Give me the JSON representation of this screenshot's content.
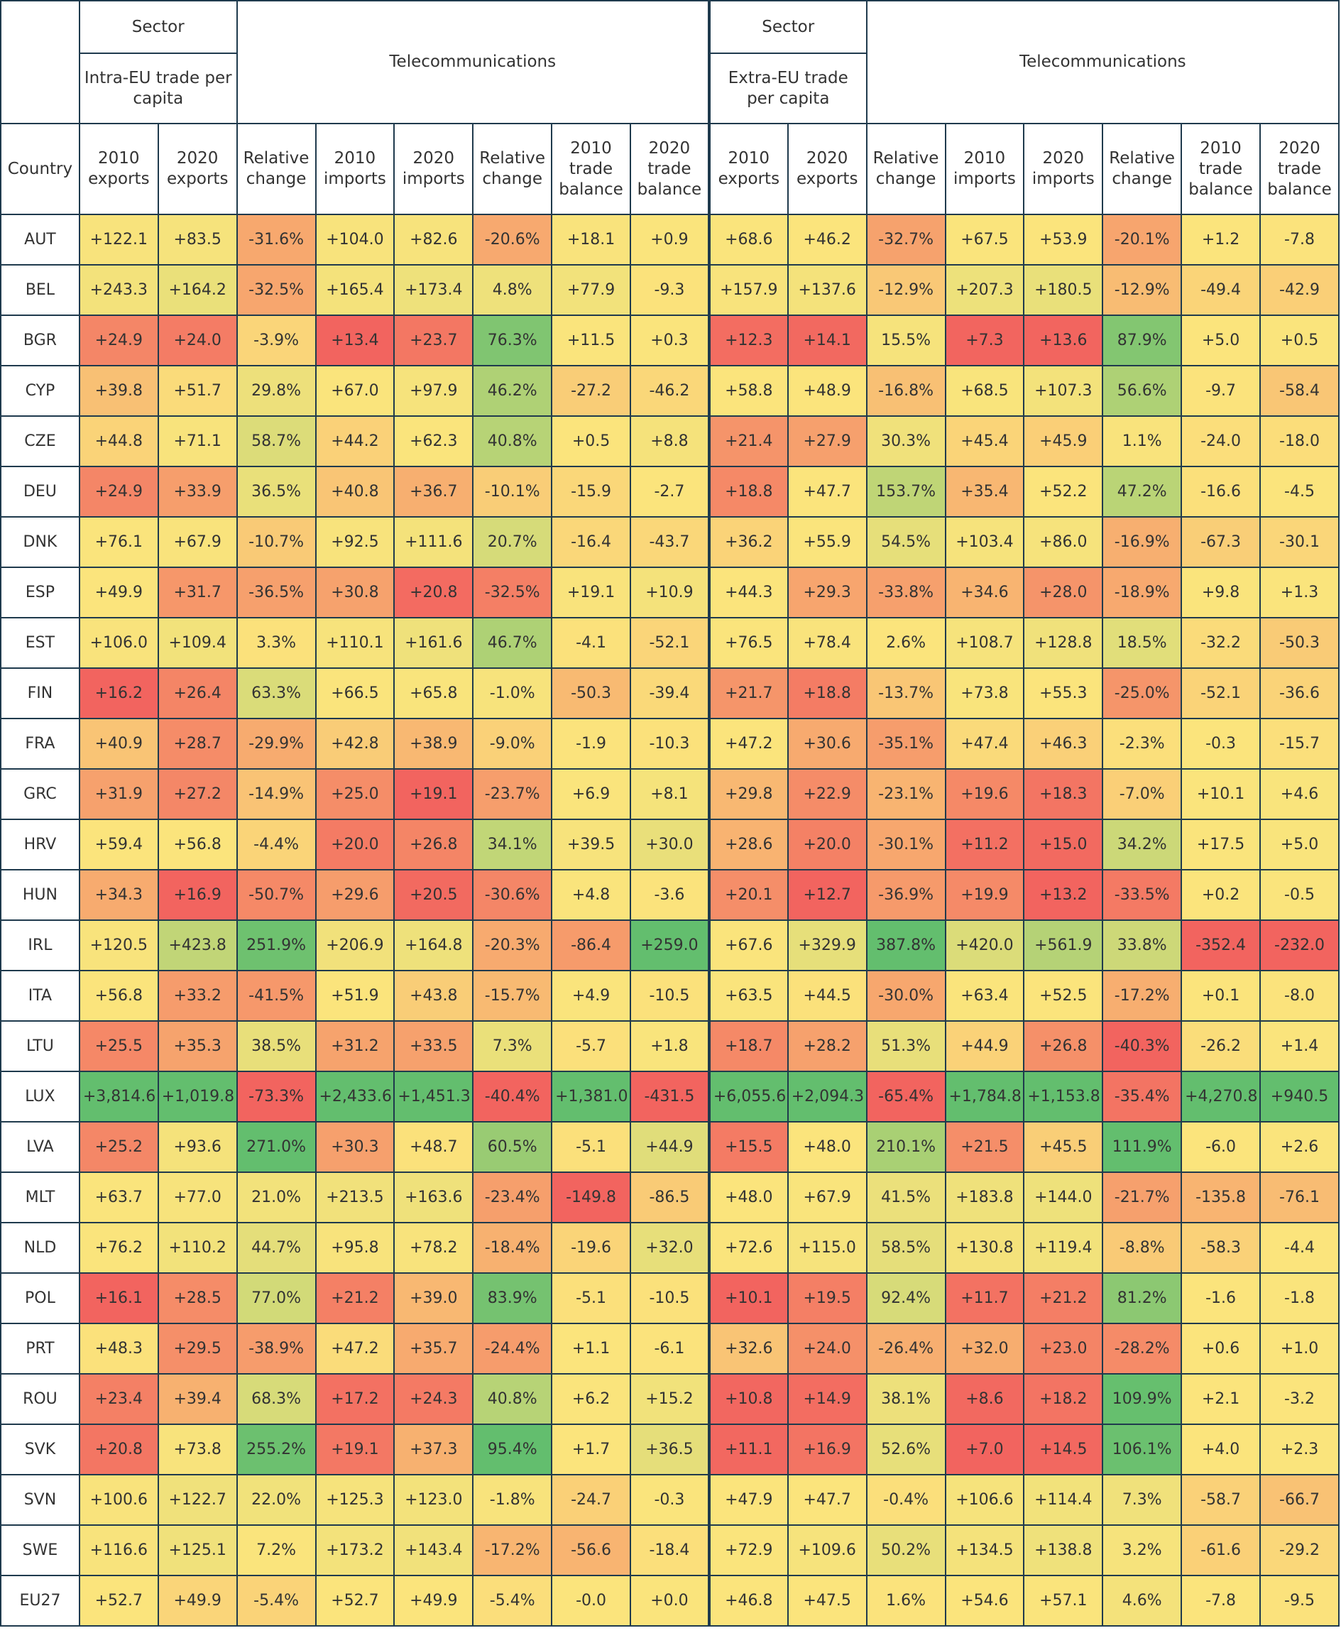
{
  "header": {
    "groups": [
      {
        "sector": "Sector",
        "trade": "Intra-EU trade per capita",
        "label": "Telecommunications"
      },
      {
        "sector": "Sector",
        "trade": "Extra-EU trade per capita",
        "label": "Telecommunications"
      }
    ],
    "columns": [
      "Country",
      "2010 exports",
      "2020 exports",
      "Relative change",
      "2010 imports",
      "2020 imports",
      "Relative change",
      "2010 trade balance",
      "2020 trade balance",
      "2010 exports",
      "2020 exports",
      "Relative change",
      "2010 imports",
      "2020 imports",
      "Relative change",
      "2010 trade balance",
      "2020 trade balance"
    ]
  },
  "heatmap": {
    "low": "#f2645f",
    "mid": "#fbe47c",
    "high": "#63be6e"
  },
  "table": {
    "rows": [
      [
        "AUT",
        "+122.1",
        "+83.5",
        "-31.6%",
        "+104.0",
        "+82.6",
        "-20.6%",
        "+18.1",
        "+0.9",
        "+68.6",
        "+46.2",
        "-32.7%",
        "+67.5",
        "+53.9",
        "-20.1%",
        "+1.2",
        "-7.8"
      ],
      [
        "BEL",
        "+243.3",
        "+164.2",
        "-32.5%",
        "+165.4",
        "+173.4",
        "4.8%",
        "+77.9",
        "-9.3",
        "+157.9",
        "+137.6",
        "-12.9%",
        "+207.3",
        "+180.5",
        "-12.9%",
        "-49.4",
        "-42.9"
      ],
      [
        "BGR",
        "+24.9",
        "+24.0",
        "-3.9%",
        "+13.4",
        "+23.7",
        "76.3%",
        "+11.5",
        "+0.3",
        "+12.3",
        "+14.1",
        "15.5%",
        "+7.3",
        "+13.6",
        "87.9%",
        "+5.0",
        "+0.5"
      ],
      [
        "CYP",
        "+39.8",
        "+51.7",
        "29.8%",
        "+67.0",
        "+97.9",
        "46.2%",
        "-27.2",
        "-46.2",
        "+58.8",
        "+48.9",
        "-16.8%",
        "+68.5",
        "+107.3",
        "56.6%",
        "-9.7",
        "-58.4"
      ],
      [
        "CZE",
        "+44.8",
        "+71.1",
        "58.7%",
        "+44.2",
        "+62.3",
        "40.8%",
        "+0.5",
        "+8.8",
        "+21.4",
        "+27.9",
        "30.3%",
        "+45.4",
        "+45.9",
        "1.1%",
        "-24.0",
        "-18.0"
      ],
      [
        "DEU",
        "+24.9",
        "+33.9",
        "36.5%",
        "+40.8",
        "+36.7",
        "-10.1%",
        "-15.9",
        "-2.7",
        "+18.8",
        "+47.7",
        "153.7%",
        "+35.4",
        "+52.2",
        "47.2%",
        "-16.6",
        "-4.5"
      ],
      [
        "DNK",
        "+76.1",
        "+67.9",
        "-10.7%",
        "+92.5",
        "+111.6",
        "20.7%",
        "-16.4",
        "-43.7",
        "+36.2",
        "+55.9",
        "54.5%",
        "+103.4",
        "+86.0",
        "-16.9%",
        "-67.3",
        "-30.1"
      ],
      [
        "ESP",
        "+49.9",
        "+31.7",
        "-36.5%",
        "+30.8",
        "+20.8",
        "-32.5%",
        "+19.1",
        "+10.9",
        "+44.3",
        "+29.3",
        "-33.8%",
        "+34.6",
        "+28.0",
        "-18.9%",
        "+9.8",
        "+1.3"
      ],
      [
        "EST",
        "+106.0",
        "+109.4",
        "3.3%",
        "+110.1",
        "+161.6",
        "46.7%",
        "-4.1",
        "-52.1",
        "+76.5",
        "+78.4",
        "2.6%",
        "+108.7",
        "+128.8",
        "18.5%",
        "-32.2",
        "-50.3"
      ],
      [
        "FIN",
        "+16.2",
        "+26.4",
        "63.3%",
        "+66.5",
        "+65.8",
        "-1.0%",
        "-50.3",
        "-39.4",
        "+21.7",
        "+18.8",
        "-13.7%",
        "+73.8",
        "+55.3",
        "-25.0%",
        "-52.1",
        "-36.6"
      ],
      [
        "FRA",
        "+40.9",
        "+28.7",
        "-29.9%",
        "+42.8",
        "+38.9",
        "-9.0%",
        "-1.9",
        "-10.3",
        "+47.2",
        "+30.6",
        "-35.1%",
        "+47.4",
        "+46.3",
        "-2.3%",
        "-0.3",
        "-15.7"
      ],
      [
        "GRC",
        "+31.9",
        "+27.2",
        "-14.9%",
        "+25.0",
        "+19.1",
        "-23.7%",
        "+6.9",
        "+8.1",
        "+29.8",
        "+22.9",
        "-23.1%",
        "+19.6",
        "+18.3",
        "-7.0%",
        "+10.1",
        "+4.6"
      ],
      [
        "HRV",
        "+59.4",
        "+56.8",
        "-4.4%",
        "+20.0",
        "+26.8",
        "34.1%",
        "+39.5",
        "+30.0",
        "+28.6",
        "+20.0",
        "-30.1%",
        "+11.2",
        "+15.0",
        "34.2%",
        "+17.5",
        "+5.0"
      ],
      [
        "HUN",
        "+34.3",
        "+16.9",
        "-50.7%",
        "+29.6",
        "+20.5",
        "-30.6%",
        "+4.8",
        "-3.6",
        "+20.1",
        "+12.7",
        "-36.9%",
        "+19.9",
        "+13.2",
        "-33.5%",
        "+0.2",
        "-0.5"
      ],
      [
        "IRL",
        "+120.5",
        "+423.8",
        "251.9%",
        "+206.9",
        "+164.8",
        "-20.3%",
        "-86.4",
        "+259.0",
        "+67.6",
        "+329.9",
        "387.8%",
        "+420.0",
        "+561.9",
        "33.8%",
        "-352.4",
        "-232.0"
      ],
      [
        "ITA",
        "+56.8",
        "+33.2",
        "-41.5%",
        "+51.9",
        "+43.8",
        "-15.7%",
        "+4.9",
        "-10.5",
        "+63.5",
        "+44.5",
        "-30.0%",
        "+63.4",
        "+52.5",
        "-17.2%",
        "+0.1",
        "-8.0"
      ],
      [
        "LTU",
        "+25.5",
        "+35.3",
        "38.5%",
        "+31.2",
        "+33.5",
        "7.3%",
        "-5.7",
        "+1.8",
        "+18.7",
        "+28.2",
        "51.3%",
        "+44.9",
        "+26.8",
        "-40.3%",
        "-26.2",
        "+1.4"
      ],
      [
        "LUX",
        "+3,814.6",
        "+1,019.8",
        "-73.3%",
        "+2,433.6",
        "+1,451.3",
        "-40.4%",
        "+1,381.0",
        "-431.5",
        "+6,055.6",
        "+2,094.3",
        "-65.4%",
        "+1,784.8",
        "+1,153.8",
        "-35.4%",
        "+4,270.8",
        "+940.5"
      ],
      [
        "LVA",
        "+25.2",
        "+93.6",
        "271.0%",
        "+30.3",
        "+48.7",
        "60.5%",
        "-5.1",
        "+44.9",
        "+15.5",
        "+48.0",
        "210.1%",
        "+21.5",
        "+45.5",
        "111.9%",
        "-6.0",
        "+2.6"
      ],
      [
        "MLT",
        "+63.7",
        "+77.0",
        "21.0%",
        "+213.5",
        "+163.6",
        "-23.4%",
        "-149.8",
        "-86.5",
        "+48.0",
        "+67.9",
        "41.5%",
        "+183.8",
        "+144.0",
        "-21.7%",
        "-135.8",
        "-76.1"
      ],
      [
        "NLD",
        "+76.2",
        "+110.2",
        "44.7%",
        "+95.8",
        "+78.2",
        "-18.4%",
        "-19.6",
        "+32.0",
        "+72.6",
        "+115.0",
        "58.5%",
        "+130.8",
        "+119.4",
        "-8.8%",
        "-58.3",
        "-4.4"
      ],
      [
        "POL",
        "+16.1",
        "+28.5",
        "77.0%",
        "+21.2",
        "+39.0",
        "83.9%",
        "-5.1",
        "-10.5",
        "+10.1",
        "+19.5",
        "92.4%",
        "+11.7",
        "+21.2",
        "81.2%",
        "-1.6",
        "-1.8"
      ],
      [
        "PRT",
        "+48.3",
        "+29.5",
        "-38.9%",
        "+47.2",
        "+35.7",
        "-24.4%",
        "+1.1",
        "-6.1",
        "+32.6",
        "+24.0",
        "-26.4%",
        "+32.0",
        "+23.0",
        "-28.2%",
        "+0.6",
        "+1.0"
      ],
      [
        "ROU",
        "+23.4",
        "+39.4",
        "68.3%",
        "+17.2",
        "+24.3",
        "40.8%",
        "+6.2",
        "+15.2",
        "+10.8",
        "+14.9",
        "38.1%",
        "+8.6",
        "+18.2",
        "109.9%",
        "+2.1",
        "-3.2"
      ],
      [
        "SVK",
        "+20.8",
        "+73.8",
        "255.2%",
        "+19.1",
        "+37.3",
        "95.4%",
        "+1.7",
        "+36.5",
        "+11.1",
        "+16.9",
        "52.6%",
        "+7.0",
        "+14.5",
        "106.1%",
        "+4.0",
        "+2.3"
      ],
      [
        "SVN",
        "+100.6",
        "+122.7",
        "22.0%",
        "+125.3",
        "+123.0",
        "-1.8%",
        "-24.7",
        "-0.3",
        "+47.9",
        "+47.7",
        "-0.4%",
        "+106.6",
        "+114.4",
        "7.3%",
        "-58.7",
        "-66.7"
      ],
      [
        "SWE",
        "+116.6",
        "+125.1",
        "7.2%",
        "+173.2",
        "+143.4",
        "-17.2%",
        "-56.6",
        "-18.4",
        "+72.9",
        "+109.6",
        "50.2%",
        "+134.5",
        "+138.8",
        "3.2%",
        "-61.6",
        "-29.2"
      ],
      [
        "EU27",
        "+52.7",
        "+49.9",
        "-5.4%",
        "+52.7",
        "+49.9",
        "-5.4%",
        "-0.0",
        "+0.0",
        "+46.8",
        "+47.5",
        "1.6%",
        "+54.6",
        "+57.1",
        "4.6%",
        "-7.8",
        "-9.5"
      ]
    ]
  }
}
